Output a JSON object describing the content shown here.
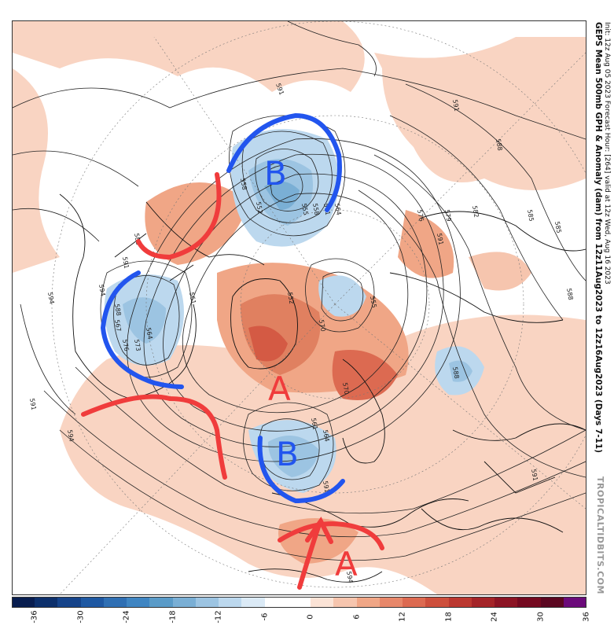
{
  "title": {
    "line1": "GEPS Mean 500mb GPH & Anomaly (dam) from 12z11Aug2023 to 12z16Aug2023 (Days 7-11)",
    "line2": "Init: 12z Aug 05 2023   Forecast Hour: [264]   valid at 12z Wed, Aug 16 2023",
    "credit": "TROPICALTIDBITS.COM"
  },
  "colors": {
    "warm_light": "#f9d4c2",
    "warm_mid": "#e9957b",
    "warm_strong": "#c9583f",
    "cold_light": "#c8dff0",
    "cold_mid": "#8fbedc",
    "cold_strong": "#5a9bc8",
    "annotation_red": "#f03c3c",
    "annotation_blue": "#2255ee"
  },
  "annotations": {
    "labels": [
      {
        "text": "B",
        "color": "blue"
      },
      {
        "text": "A",
        "color": "red"
      },
      {
        "text": "B",
        "color": "blue"
      },
      {
        "text": "A",
        "color": "red"
      }
    ]
  },
  "contour_labels": [
    "591",
    "591",
    "588",
    "585",
    "588",
    "588",
    "591",
    "594",
    "564",
    "561",
    "558",
    "555",
    "552",
    "576",
    "579",
    "582",
    "585",
    "588",
    "591",
    "594",
    "570",
    "567",
    "564",
    "561",
    "552",
    "555",
    "558",
    "570",
    "564",
    "561",
    "588",
    "591",
    "594",
    "576",
    "573",
    "594",
    "591",
    "591"
  ],
  "colorbar": {
    "ticks": [
      "-36",
      "-30",
      "-24",
      "-18",
      "-12",
      "-6",
      "0",
      "6",
      "12",
      "18",
      "24",
      "30",
      "36"
    ],
    "colors": [
      "#081d4f",
      "#0c2f6b",
      "#15438a",
      "#1e58a2",
      "#2f6fb3",
      "#3f85c2",
      "#5a9bc8",
      "#7aafd5",
      "#9cc4e2",
      "#bcd8ee",
      "#dbeaf6",
      "#ffffff",
      "#ffffff",
      "#fbe3d6",
      "#f6c5ae",
      "#f0a686",
      "#e7876a",
      "#dc6a51",
      "#cd4f3c",
      "#bb3830",
      "#a42428",
      "#8c1424",
      "#740920",
      "#5b0721",
      "#6b0a7a"
    ]
  }
}
